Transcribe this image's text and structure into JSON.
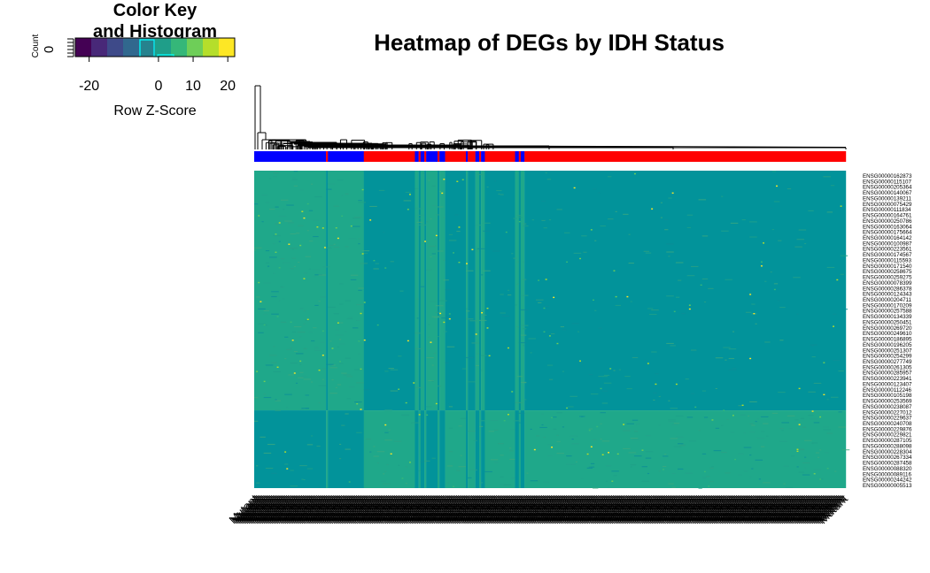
{
  "chart_data": {
    "type": "heatmap",
    "title": "Heatmap of DEGs by IDH Status",
    "color_key": {
      "title_line1": "Color Key",
      "title_line2": "and Histogram",
      "xlabel": "Row Z-Score",
      "ylabel": "Count",
      "y_tick": "0",
      "x_ticks": [
        -20,
        0,
        10,
        20
      ],
      "range": [
        -24,
        22
      ],
      "colors": [
        "#440154",
        "#482878",
        "#3e4a89",
        "#31688e",
        "#26828e",
        "#1f9e89",
        "#35b779",
        "#6ece58",
        "#b5de2b",
        "#fde725"
      ]
    },
    "column_groups": {
      "colors": {
        "Mutant": "#0000ff",
        "WT": "#ff0000"
      },
      "runs": [
        {
          "group": "Mutant",
          "count": 38
        },
        {
          "group": "WT",
          "count": 1
        },
        {
          "group": "Mutant",
          "count": 19
        },
        {
          "group": "WT",
          "count": 27
        },
        {
          "group": "Mutant",
          "count": 2
        },
        {
          "group": "WT",
          "count": 1
        },
        {
          "group": "Mutant",
          "count": 2
        },
        {
          "group": "WT",
          "count": 1
        },
        {
          "group": "Mutant",
          "count": 6
        },
        {
          "group": "WT",
          "count": 1
        },
        {
          "group": "Mutant",
          "count": 3
        },
        {
          "group": "WT",
          "count": 11
        },
        {
          "group": "Mutant",
          "count": 1
        },
        {
          "group": "WT",
          "count": 4
        },
        {
          "group": "Mutant",
          "count": 2
        },
        {
          "group": "WT",
          "count": 1
        },
        {
          "group": "Mutant",
          "count": 2
        },
        {
          "group": "WT",
          "count": 16
        },
        {
          "group": "Mutant",
          "count": 2
        },
        {
          "group": "WT",
          "count": 1
        },
        {
          "group": "Mutant",
          "count": 2
        },
        {
          "group": "WT",
          "count": 170
        }
      ]
    },
    "row_labels": [
      "ENSG00000162873",
      "ENSG00000115107",
      "ENSG00000205364",
      "ENSG00000140067",
      "ENSG00000139211",
      "ENSG00000075429",
      "ENSG00000111834",
      "ENSG00000164761",
      "ENSG00000250786",
      "ENSG00000163064",
      "ENSG00000175664",
      "ENSG00000164142",
      "ENSG00000100987",
      "ENSG00000223561",
      "ENSG00000174567",
      "ENSG00000115593",
      "ENSG00000171540",
      "ENSG00000258675",
      "ENSG00000259275",
      "ENSG00000078399",
      "ENSG00000286378",
      "ENSG00000124343",
      "ENSG00000204711",
      "ENSG00000170209",
      "ENSG00000257588",
      "ENSG00000134339",
      "ENSG00000250451",
      "ENSG00000269720",
      "ENSG00000249610",
      "ENSG00000186895",
      "ENSG00000196205",
      "ENSG00000251307",
      "ENSG00000254299",
      "ENSG00000277749",
      "ENSG00000261305",
      "ENSG00000285957",
      "ENSG00000223941",
      "ENSG00000123407",
      "ENSG00000112246",
      "ENSG00000105198",
      "ENSG00000253569",
      "ENSG00000238087",
      "ENSG00000227012",
      "ENSG00000229637",
      "ENSG00000240708",
      "ENSG00000229876",
      "ENSG00000229821",
      "ENSG00000287105",
      "ENSG00000288098",
      "ENSG00000228304",
      "ENSG00000267334",
      "ENSG00000287458",
      "ENSG00000088320",
      "ENSG00000089116",
      "ENSG00000244242",
      "ENSG00000005513"
    ],
    "row_blocks": {
      "top_fraction": 0.755,
      "top": {
        "Mutant": "high",
        "WT": "low"
      },
      "bottom": {
        "Mutant": "low",
        "WT": "high"
      }
    },
    "column_label_text": "Mutant"
  }
}
